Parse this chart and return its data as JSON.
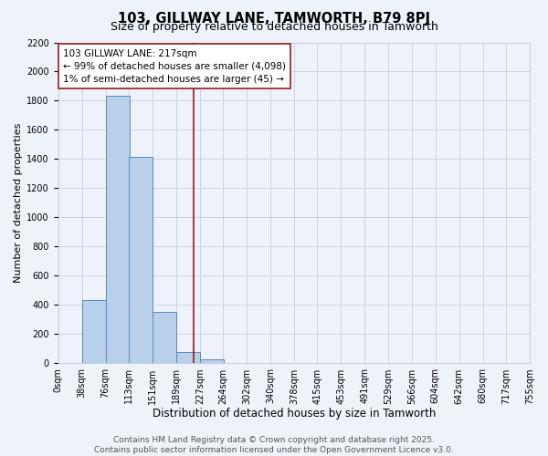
{
  "title": "103, GILLWAY LANE, TAMWORTH, B79 8PJ",
  "subtitle": "Size of property relative to detached houses in Tamworth",
  "xlabel": "Distribution of detached houses by size in Tamworth",
  "ylabel": "Number of detached properties",
  "bin_edges": [
    0,
    38,
    76,
    113,
    151,
    189,
    227,
    264,
    302,
    340,
    378,
    415,
    453,
    491,
    529,
    566,
    604,
    642,
    680,
    717,
    755
  ],
  "bar_heights": [
    0,
    435,
    1835,
    1415,
    355,
    80,
    30,
    0,
    0,
    0,
    0,
    0,
    0,
    0,
    0,
    0,
    0,
    0,
    0,
    0
  ],
  "bar_color": "#b8d0ea",
  "bar_edge_color": "#5a8abf",
  "property_line_x": 217,
  "property_line_color": "#9b1a1a",
  "annotation_text": "103 GILLWAY LANE: 217sqm\n← 99% of detached houses are smaller (4,098)\n1% of semi-detached houses are larger (45) →",
  "annotation_box_color": "#ffffff",
  "annotation_box_edge_color": "#9b1a1a",
  "ylim": [
    0,
    2200
  ],
  "yticks": [
    0,
    200,
    400,
    600,
    800,
    1000,
    1200,
    1400,
    1600,
    1800,
    2000,
    2200
  ],
  "xtick_labels": [
    "0sqm",
    "38sqm",
    "76sqm",
    "113sqm",
    "151sqm",
    "189sqm",
    "227sqm",
    "264sqm",
    "302sqm",
    "340sqm",
    "378sqm",
    "415sqm",
    "453sqm",
    "491sqm",
    "529sqm",
    "566sqm",
    "604sqm",
    "642sqm",
    "680sqm",
    "717sqm",
    "755sqm"
  ],
  "background_color": "#eef2fb",
  "grid_color": "#c8cedc",
  "footer_line1": "Contains HM Land Registry data © Crown copyright and database right 2025.",
  "footer_line2": "Contains public sector information licensed under the Open Government Licence v3.0.",
  "title_fontsize": 10.5,
  "subtitle_fontsize": 9,
  "xlabel_fontsize": 8.5,
  "ylabel_fontsize": 8,
  "tick_fontsize": 7,
  "annotation_fontsize": 7.5,
  "footer_fontsize": 6.5
}
